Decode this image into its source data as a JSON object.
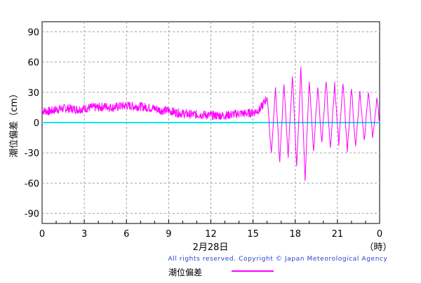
{
  "chart_data": {
    "type": "line",
    "ylabel": "潮位偏差（cm）",
    "xlabel_date": "2月28日",
    "xlabel_unit": "（時）",
    "x_ticks": [
      "0",
      "3",
      "6",
      "9",
      "12",
      "15",
      "18",
      "21",
      "0"
    ],
    "y_ticks": [
      "90",
      "60",
      "30",
      "0",
      "-30",
      "-60",
      "-90"
    ],
    "ylim": [
      -100,
      100
    ],
    "xlim_hours": [
      0,
      24
    ],
    "grid": true,
    "baseline": 0,
    "series": [
      {
        "name": "潮位偏差",
        "color": "#ff00ff",
        "points": [
          [
            0.0,
            12
          ],
          [
            0.5,
            11
          ],
          [
            1.0,
            13
          ],
          [
            1.5,
            14
          ],
          [
            2.0,
            14
          ],
          [
            2.5,
            13
          ],
          [
            3.0,
            14
          ],
          [
            3.5,
            15
          ],
          [
            4.0,
            15
          ],
          [
            4.5,
            16
          ],
          [
            5.0,
            15
          ],
          [
            5.5,
            16
          ],
          [
            6.0,
            17
          ],
          [
            6.5,
            16
          ],
          [
            7.0,
            16
          ],
          [
            7.5,
            15
          ],
          [
            8.0,
            14
          ],
          [
            8.5,
            12
          ],
          [
            9.0,
            12
          ],
          [
            9.5,
            10
          ],
          [
            10.0,
            9
          ],
          [
            10.5,
            8
          ],
          [
            11.0,
            8
          ],
          [
            11.5,
            8
          ],
          [
            12.0,
            7
          ],
          [
            12.5,
            7
          ],
          [
            13.0,
            7
          ],
          [
            13.5,
            8
          ],
          [
            14.0,
            9
          ],
          [
            14.5,
            9
          ],
          [
            15.0,
            10
          ],
          [
            15.5,
            13
          ],
          [
            16.0,
            25
          ],
          [
            16.3,
            -30
          ],
          [
            16.6,
            35
          ],
          [
            16.9,
            -40
          ],
          [
            17.2,
            40
          ],
          [
            17.5,
            -35
          ],
          [
            17.8,
            48
          ],
          [
            18.1,
            -45
          ],
          [
            18.4,
            53
          ],
          [
            18.7,
            -55
          ],
          [
            19.0,
            40
          ],
          [
            19.3,
            -30
          ],
          [
            19.6,
            35
          ],
          [
            19.9,
            -20
          ],
          [
            20.2,
            42
          ],
          [
            20.5,
            -25
          ],
          [
            20.8,
            38
          ],
          [
            21.1,
            -22
          ],
          [
            21.4,
            40
          ],
          [
            21.7,
            -30
          ],
          [
            22.0,
            35
          ],
          [
            22.3,
            -25
          ],
          [
            22.6,
            30
          ],
          [
            22.9,
            -20
          ],
          [
            23.2,
            32
          ],
          [
            23.5,
            -15
          ],
          [
            23.8,
            24
          ],
          [
            24.0,
            0
          ]
        ]
      }
    ],
    "baseline_color": "#00e5ee",
    "copyright": "All rights reserved. Copyright © Japan Meteorological Agency",
    "legend_label": "潮位偏差"
  }
}
